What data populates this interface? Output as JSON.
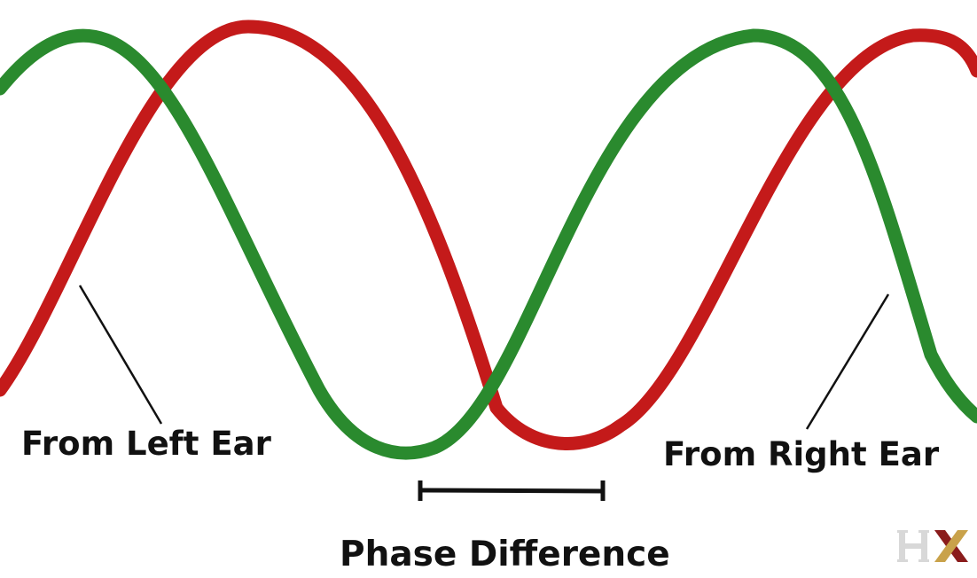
{
  "labels": {
    "left_ear": "From Left Ear",
    "right_ear": "From Right Ear",
    "phase_difference": "Phase Difference"
  },
  "logo": {
    "text": "HX",
    "colors": [
      "#d8d8d8",
      "#8a1c1c",
      "#c9a24a"
    ]
  },
  "colors": {
    "left_wave": "#c41a1a",
    "right_wave": "#2a8a2e",
    "pointer_lines": "#111111",
    "bracket": "#111111",
    "text": "#111111",
    "background": "#ffffff"
  }
}
